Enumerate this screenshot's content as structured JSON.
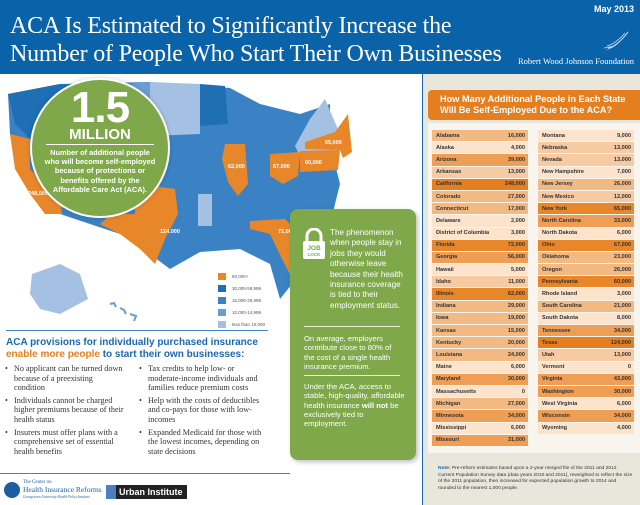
{
  "header": {
    "title_line1": "ACA Is Estimated to Significantly Increase the",
    "title_line2": "Number of People Who Start Their Own Businesses",
    "date": "May 2013",
    "logo_icon": "rwjf-wing-icon",
    "foundation": "Robert Wood Johnson Foundation"
  },
  "callout": {
    "number": "1.5",
    "unit": "MILLION",
    "description": "Number of additional people who will become self-employed because of protections or benefits offered by the Affordable Care Act (ACA)."
  },
  "map": {
    "labels": {
      "california": "248,000",
      "texas": "124,000",
      "illinois": "62,000",
      "ohio": "67,000",
      "pennsylvania": "60,000",
      "new_york": "65,000",
      "florida": "72,000"
    },
    "legend": [
      {
        "label": "60,000+",
        "color": "#e8862a"
      },
      {
        "label": "30,000-59,999",
        "color": "#1f6fb5"
      },
      {
        "label": "15,000-29,999",
        "color": "#3a82c4"
      },
      {
        "label": "10,000-14,999",
        "color": "#6a9ed1"
      },
      {
        "label": "less than 10,000",
        "color": "#a4c1e3"
      }
    ]
  },
  "job_lock": {
    "icon": "padlock-icon",
    "icon_text1": "JOB",
    "icon_text2": "LOCK",
    "definition": "The phenomenon when people stay in jobs they would otherwise leave because their health insurance coverage is tied to their employment status.",
    "stat": "On average, employers contribute close to 80% of the cost of a single health insurance premium.",
    "aca_pre": "Under the ACA, access to stable, high-quality, affordable health insurance ",
    "aca_bold": "will not",
    "aca_post": " be exclusively tied to employment."
  },
  "provisions": {
    "heading_part1": "ACA provisions for individually purchased insurance",
    "heading_orange": "enable more people",
    "heading_part2": " to start their own businesses:",
    "left": [
      "No applicant can be turned down because of a preexisting condition",
      "Individuals cannot be charged higher premiums because of their health status",
      "Insurers must offer plans with a comprehensive set of essential health benefits"
    ],
    "right": [
      "Tax credits to help low- or moderate-income individuals and families reduce premium costs",
      "Help with the costs of deductibles and co-pays for those with low-incomes",
      "Expanded Medicaid for those with the lowest incomes, depending on state decisions"
    ]
  },
  "footer": {
    "chir_line1": "The Center on",
    "chir_line2": "Health Insurance Reforms",
    "chir_line3": "Georgetown University Health Policy Institute",
    "urban": "Urban Institute"
  },
  "table": {
    "title_line1": "How Many Additional People in Each State",
    "title_line2": "Will Be Self-Employed Due to the ACA?",
    "left": [
      {
        "state": "Alabama",
        "value": "16,000"
      },
      {
        "state": "Alaska",
        "value": "4,000"
      },
      {
        "state": "Arizona",
        "value": "39,000"
      },
      {
        "state": "Arkansas",
        "value": "13,000"
      },
      {
        "state": "California",
        "value": "248,000"
      },
      {
        "state": "Colorado",
        "value": "27,000"
      },
      {
        "state": "Connecticut",
        "value": "17,000"
      },
      {
        "state": "Delaware",
        "value": "2,000"
      },
      {
        "state": "District of Columbia",
        "value": "3,000"
      },
      {
        "state": "Florida",
        "value": "72,000"
      },
      {
        "state": "Georgia",
        "value": "56,000"
      },
      {
        "state": "Hawaii",
        "value": "5,000"
      },
      {
        "state": "Idaho",
        "value": "11,000"
      },
      {
        "state": "Illinois",
        "value": "62,000"
      },
      {
        "state": "Indiana",
        "value": "29,000"
      },
      {
        "state": "Iowa",
        "value": "19,000"
      },
      {
        "state": "Kansas",
        "value": "15,000"
      },
      {
        "state": "Kentucky",
        "value": "20,000"
      },
      {
        "state": "Louisiana",
        "value": "24,000"
      },
      {
        "state": "Maine",
        "value": "6,000"
      },
      {
        "state": "Maryland",
        "value": "30,000"
      },
      {
        "state": "Massachusetts",
        "value": "0"
      },
      {
        "state": "Michigan",
        "value": "27,000"
      },
      {
        "state": "Minnesota",
        "value": "34,000"
      },
      {
        "state": "Mississippi",
        "value": "6,000"
      },
      {
        "state": "Missouri",
        "value": "31,000"
      }
    ],
    "right": [
      {
        "state": "Montana",
        "value": "9,000"
      },
      {
        "state": "Nebraska",
        "value": "13,000"
      },
      {
        "state": "Nevada",
        "value": "13,000"
      },
      {
        "state": "New Hampshire",
        "value": "7,000"
      },
      {
        "state": "New Jersey",
        "value": "26,000"
      },
      {
        "state": "New Mexico",
        "value": "12,000"
      },
      {
        "state": "New York",
        "value": "65,000"
      },
      {
        "state": "North Carolina",
        "value": "33,000"
      },
      {
        "state": "North Dakota",
        "value": "6,000"
      },
      {
        "state": "Ohio",
        "value": "67,000"
      },
      {
        "state": "Oklahoma",
        "value": "23,000"
      },
      {
        "state": "Oregon",
        "value": "26,000"
      },
      {
        "state": "Pennsylvania",
        "value": "60,000"
      },
      {
        "state": "Rhode Island",
        "value": "3,000"
      },
      {
        "state": "South Carolina",
        "value": "21,000"
      },
      {
        "state": "South Dakota",
        "value": "8,000"
      },
      {
        "state": "Tennessee",
        "value": "34,000"
      },
      {
        "state": "Texas",
        "value": "124,000"
      },
      {
        "state": "Utah",
        "value": "13,000"
      },
      {
        "state": "Vermont",
        "value": "0"
      },
      {
        "state": "Virginia",
        "value": "43,000"
      },
      {
        "state": "Washington",
        "value": "30,000"
      },
      {
        "state": "West Virginia",
        "value": "6,000"
      },
      {
        "state": "Wisconsin",
        "value": "34,000"
      },
      {
        "state": "Wyoming",
        "value": "4,000"
      }
    ],
    "note_label": "Note:",
    "note_text": " Pre-reform estimates based upon a 2-year merged file of the 2011 and 2012 Current Population Survey data (data years 2010 and 2011), reweighted to reflect the size of the 2011 population, then increased for expected population growth to 2014 and rounded to the nearest 1,000 people."
  }
}
